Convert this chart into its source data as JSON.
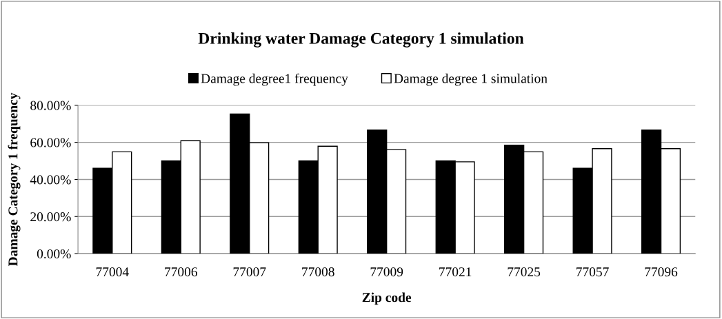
{
  "chart_data": {
    "type": "bar",
    "title": "Drinking water Damage Category 1 simulation",
    "xlabel": "Zip code",
    "ylabel": "Damage Category 1 frequency",
    "categories": [
      "77004",
      "77006",
      "77007",
      "77008",
      "77009",
      "77021",
      "77025",
      "77057",
      "77096"
    ],
    "series": [
      {
        "name": "Damage degree1 frequency",
        "color": "#000000",
        "values": [
          46.0,
          50.0,
          75.3,
          50.0,
          66.7,
          50.0,
          58.5,
          46.0,
          66.7
        ]
      },
      {
        "name": "Damage degree 1 simulation",
        "color": "#ffffff",
        "values": [
          54.9,
          60.9,
          59.8,
          57.9,
          56.1,
          49.5,
          54.9,
          56.6,
          56.6
        ]
      }
    ],
    "ylim": [
      0,
      80
    ],
    "yticks": [
      {
        "value": 0,
        "label": "0.00%"
      },
      {
        "value": 20,
        "label": "20.00%"
      },
      {
        "value": 40,
        "label": "40.00%"
      },
      {
        "value": 60,
        "label": "60.00%"
      },
      {
        "value": 80,
        "label": "80.00%"
      }
    ],
    "grid": "y",
    "legend": "top"
  }
}
